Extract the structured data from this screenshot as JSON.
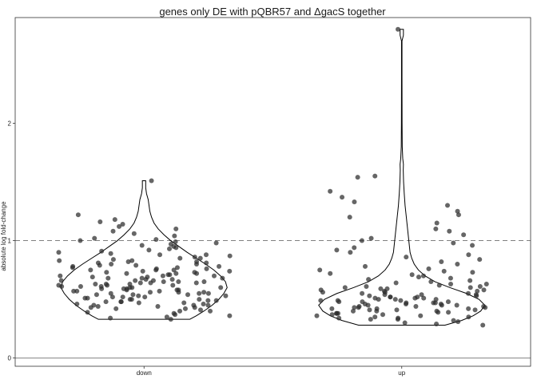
{
  "chart_data": {
    "type": "violin",
    "title": "genes only DE with pQBR57 and ΔgacS together",
    "xlabel": "",
    "ylabel": "absolute log fold-change",
    "categories": [
      "down",
      "up"
    ],
    "yticks": [
      0,
      1,
      2
    ],
    "ylim": [
      -0.07,
      2.9
    ],
    "grid": false,
    "legend": "none",
    "reference_lines": [
      {
        "y": 1,
        "style": "dashed",
        "color": "#808080"
      },
      {
        "y": 0,
        "style": "solid",
        "color": "#808080"
      }
    ],
    "point_color": "#2b2b2b",
    "line_color": "#000000",
    "violins": [
      {
        "category": "down",
        "min": 0.33,
        "max": 1.51,
        "profile": [
          [
            0.33,
            0.55
          ],
          [
            0.36,
            0.63
          ],
          [
            0.4,
            0.72
          ],
          [
            0.45,
            0.82
          ],
          [
            0.5,
            0.9
          ],
          [
            0.55,
            0.96
          ],
          [
            0.6,
            1.0
          ],
          [
            0.65,
            0.98
          ],
          [
            0.7,
            0.92
          ],
          [
            0.75,
            0.84
          ],
          [
            0.8,
            0.74
          ],
          [
            0.85,
            0.63
          ],
          [
            0.9,
            0.52
          ],
          [
            0.95,
            0.42
          ],
          [
            1.0,
            0.32
          ],
          [
            1.05,
            0.24
          ],
          [
            1.1,
            0.17
          ],
          [
            1.15,
            0.12
          ],
          [
            1.2,
            0.09
          ],
          [
            1.25,
            0.07
          ],
          [
            1.3,
            0.06
          ],
          [
            1.35,
            0.05
          ],
          [
            1.4,
            0.03
          ],
          [
            1.45,
            0.02
          ],
          [
            1.51,
            0.02
          ]
        ]
      },
      {
        "category": "up",
        "min": 0.28,
        "max": 2.8,
        "profile": [
          [
            0.28,
            0.52
          ],
          [
            0.32,
            0.72
          ],
          [
            0.36,
            0.86
          ],
          [
            0.4,
            0.95
          ],
          [
            0.45,
            1.0
          ],
          [
            0.5,
            0.93
          ],
          [
            0.55,
            0.78
          ],
          [
            0.6,
            0.58
          ],
          [
            0.65,
            0.4
          ],
          [
            0.7,
            0.28
          ],
          [
            0.75,
            0.2
          ],
          [
            0.8,
            0.15
          ],
          [
            0.85,
            0.12
          ],
          [
            0.9,
            0.1
          ],
          [
            1.0,
            0.085
          ],
          [
            1.1,
            0.07
          ],
          [
            1.2,
            0.055
          ],
          [
            1.3,
            0.04
          ],
          [
            1.4,
            0.03
          ],
          [
            1.5,
            0.022
          ],
          [
            1.6,
            0.018
          ],
          [
            1.65,
            0.02
          ],
          [
            1.7,
            0.012
          ],
          [
            1.8,
            0.006
          ],
          [
            2.0,
            0.004
          ],
          [
            2.4,
            0.003
          ],
          [
            2.7,
            0.003
          ],
          [
            2.75,
            0.02
          ],
          [
            2.8,
            0.02
          ]
        ]
      }
    ],
    "points": {
      "down": [
        0.33,
        0.34,
        0.35,
        0.36,
        0.37,
        0.38,
        0.39,
        0.4,
        0.4,
        0.41,
        0.42,
        0.42,
        0.43,
        0.43,
        0.44,
        0.44,
        0.45,
        0.45,
        0.45,
        0.46,
        0.46,
        0.47,
        0.47,
        0.48,
        0.48,
        0.48,
        0.49,
        0.49,
        0.5,
        0.5,
        0.5,
        0.51,
        0.51,
        0.52,
        0.52,
        0.52,
        0.53,
        0.53,
        0.54,
        0.54,
        0.54,
        0.55,
        0.55,
        0.55,
        0.56,
        0.56,
        0.56,
        0.57,
        0.57,
        0.57,
        0.58,
        0.58,
        0.58,
        0.59,
        0.59,
        0.59,
        0.6,
        0.6,
        0.6,
        0.61,
        0.61,
        0.61,
        0.62,
        0.62,
        0.62,
        0.63,
        0.63,
        0.63,
        0.64,
        0.64,
        0.64,
        0.65,
        0.65,
        0.65,
        0.66,
        0.66,
        0.66,
        0.67,
        0.67,
        0.68,
        0.68,
        0.68,
        0.69,
        0.69,
        0.7,
        0.7,
        0.7,
        0.71,
        0.71,
        0.72,
        0.72,
        0.72,
        0.73,
        0.73,
        0.74,
        0.74,
        0.75,
        0.75,
        0.75,
        0.76,
        0.76,
        0.77,
        0.77,
        0.78,
        0.78,
        0.79,
        0.79,
        0.8,
        0.8,
        0.81,
        0.81,
        0.82,
        0.82,
        0.83,
        0.83,
        0.84,
        0.85,
        0.85,
        0.86,
        0.87,
        0.88,
        0.88,
        0.89,
        0.9,
        0.91,
        0.92,
        0.93,
        0.94,
        0.95,
        0.96,
        0.97,
        0.98,
        0.99,
        1.0,
        1.01,
        1.02,
        1.04,
        1.06,
        1.08,
        1.1,
        1.12,
        1.14,
        1.16,
        1.18,
        1.22,
        1.51
      ],
      "up": [
        0.28,
        0.29,
        0.3,
        0.31,
        0.32,
        0.33,
        0.33,
        0.34,
        0.34,
        0.35,
        0.35,
        0.36,
        0.36,
        0.37,
        0.37,
        0.38,
        0.38,
        0.38,
        0.39,
        0.39,
        0.4,
        0.4,
        0.4,
        0.41,
        0.41,
        0.41,
        0.42,
        0.42,
        0.42,
        0.43,
        0.43,
        0.43,
        0.44,
        0.44,
        0.44,
        0.45,
        0.45,
        0.45,
        0.46,
        0.46,
        0.46,
        0.47,
        0.47,
        0.47,
        0.48,
        0.48,
        0.48,
        0.49,
        0.49,
        0.49,
        0.5,
        0.5,
        0.5,
        0.51,
        0.51,
        0.51,
        0.52,
        0.52,
        0.52,
        0.53,
        0.53,
        0.54,
        0.54,
        0.54,
        0.55,
        0.55,
        0.56,
        0.56,
        0.57,
        0.57,
        0.58,
        0.58,
        0.59,
        0.59,
        0.6,
        0.6,
        0.61,
        0.61,
        0.62,
        0.63,
        0.63,
        0.64,
        0.65,
        0.66,
        0.67,
        0.68,
        0.69,
        0.7,
        0.71,
        0.72,
        0.73,
        0.74,
        0.75,
        0.76,
        0.78,
        0.8,
        0.82,
        0.84,
        0.86,
        0.88,
        0.9,
        0.92,
        0.94,
        0.96,
        0.98,
        1.0,
        1.02,
        1.05,
        1.08,
        1.1,
        1.15,
        1.2,
        1.22,
        1.25,
        1.3,
        1.33,
        1.37,
        1.42,
        1.54,
        1.55,
        2.8
      ]
    }
  }
}
